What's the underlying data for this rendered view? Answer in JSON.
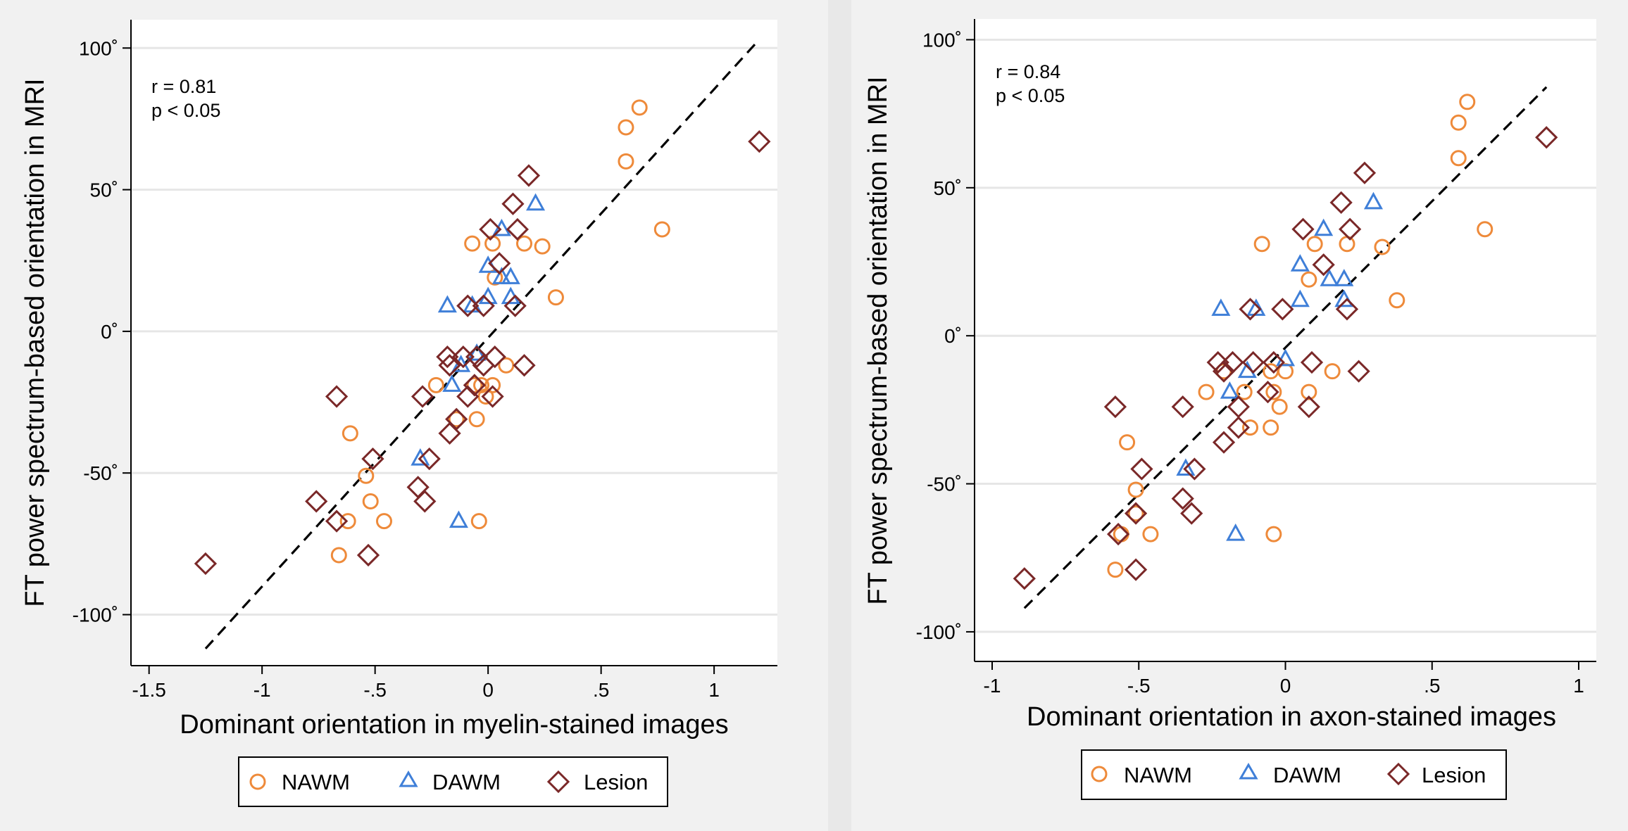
{
  "chart_data": [
    {
      "type": "scatter",
      "xlabel": "Dominant orientation in myelin-stained images",
      "ylabel": "FT power spectrum-based orientation in MRI",
      "annotation": [
        "r = 0.81",
        "p < 0.05"
      ],
      "xlim": [
        -1.58,
        1.28
      ],
      "ylim": [
        -118,
        110
      ],
      "xticks": [
        -1.5,
        -1,
        -0.5,
        0,
        0.5,
        1
      ],
      "xtick_labels": [
        "-1.5",
        "-1",
        "-.5",
        "0",
        ".5",
        "1"
      ],
      "yticks": [
        100,
        50,
        0,
        -50,
        -100
      ],
      "ytick_labels": [
        "100˚",
        "50˚",
        "0˚",
        "-50˚",
        "-100˚"
      ],
      "fit_line": {
        "x": [
          -1.25,
          1.2
        ],
        "y": [
          -112,
          103
        ]
      },
      "legend": [
        "NAWM",
        "DAWM",
        "Lesion"
      ],
      "series": [
        {
          "name": "NAWM",
          "color": "#ee8a3a",
          "marker": "circle",
          "points": [
            [
              0.67,
              79
            ],
            [
              0.61,
              72
            ],
            [
              0.61,
              60
            ],
            [
              0.77,
              36
            ],
            [
              0.24,
              30
            ],
            [
              0.16,
              31
            ],
            [
              0.02,
              31
            ],
            [
              -0.07,
              31
            ],
            [
              0.03,
              19
            ],
            [
              0.3,
              12
            ],
            [
              0.08,
              -12
            ],
            [
              -0.03,
              -19
            ],
            [
              -0.06,
              -19
            ],
            [
              0.02,
              -19
            ],
            [
              -0.23,
              -19
            ],
            [
              -0.01,
              -23
            ],
            [
              -0.14,
              -31
            ],
            [
              -0.05,
              -31
            ],
            [
              -0.61,
              -36
            ],
            [
              -0.54,
              -51
            ],
            [
              -0.52,
              -60
            ],
            [
              -0.62,
              -67
            ],
            [
              -0.46,
              -67
            ],
            [
              -0.04,
              -67
            ],
            [
              -0.66,
              -79
            ]
          ]
        },
        {
          "name": "DAWM",
          "color": "#3f7fd8",
          "marker": "triangle",
          "points": [
            [
              0.21,
              45
            ],
            [
              0.06,
              36
            ],
            [
              0.0,
              23
            ],
            [
              0.06,
              19
            ],
            [
              0.1,
              19
            ],
            [
              0.1,
              12
            ],
            [
              -0.18,
              9
            ],
            [
              -0.07,
              9
            ],
            [
              0.0,
              12
            ],
            [
              -0.12,
              -12
            ],
            [
              -0.05,
              -8
            ],
            [
              -0.16,
              -19
            ],
            [
              -0.3,
              -45
            ],
            [
              -0.13,
              -67
            ]
          ]
        },
        {
          "name": "Lesion",
          "color": "#7a2828",
          "marker": "diamond",
          "points": [
            [
              1.2,
              67
            ],
            [
              0.18,
              55
            ],
            [
              0.11,
              45
            ],
            [
              0.01,
              36
            ],
            [
              0.13,
              36
            ],
            [
              0.05,
              24
            ],
            [
              -0.09,
              9
            ],
            [
              -0.02,
              9
            ],
            [
              0.12,
              9
            ],
            [
              -0.18,
              -9
            ],
            [
              -0.11,
              -9
            ],
            [
              -0.05,
              -9
            ],
            [
              0.03,
              -9
            ],
            [
              -0.17,
              -12
            ],
            [
              -0.02,
              -12
            ],
            [
              0.16,
              -12
            ],
            [
              -0.06,
              -19
            ],
            [
              -0.09,
              -23
            ],
            [
              -0.29,
              -23
            ],
            [
              0.02,
              -23
            ],
            [
              -0.67,
              -23
            ],
            [
              -0.14,
              -31
            ],
            [
              -0.17,
              -36
            ],
            [
              -0.26,
              -45
            ],
            [
              -0.51,
              -45
            ],
            [
              -0.31,
              -55
            ],
            [
              -0.76,
              -60
            ],
            [
              -0.28,
              -60
            ],
            [
              -0.67,
              -67
            ],
            [
              -0.53,
              -79
            ],
            [
              -1.25,
              -82
            ]
          ]
        }
      ]
    },
    {
      "type": "scatter",
      "xlabel": "Dominant orientation in axon-stained images",
      "ylabel": "FT power spectrum-based orientation in MRI",
      "annotation": [
        "r = 0.84",
        "p < 0.05"
      ],
      "xlim": [
        -1.06,
        1.06
      ],
      "ylim": [
        -110,
        107
      ],
      "xticks": [
        -1,
        -0.5,
        0,
        0.5,
        1
      ],
      "xtick_labels": [
        "-1",
        "-.5",
        "0",
        ".5",
        "1"
      ],
      "yticks": [
        100,
        50,
        0,
        -50,
        -100
      ],
      "ytick_labels": [
        "100˚",
        "50˚",
        "0˚",
        "-50˚",
        "-100˚"
      ],
      "fit_line": {
        "x": [
          -0.89,
          0.89
        ],
        "y": [
          -92,
          84
        ]
      },
      "legend": [
        "NAWM",
        "DAWM",
        "Lesion"
      ],
      "series": [
        {
          "name": "NAWM",
          "color": "#ee8a3a",
          "marker": "circle",
          "points": [
            [
              0.62,
              79
            ],
            [
              0.59,
              72
            ],
            [
              0.59,
              60
            ],
            [
              0.68,
              36
            ],
            [
              0.33,
              30
            ],
            [
              0.21,
              31
            ],
            [
              0.1,
              31
            ],
            [
              -0.08,
              31
            ],
            [
              0.08,
              19
            ],
            [
              0.38,
              12
            ],
            [
              0.16,
              -12
            ],
            [
              -0.05,
              -12
            ],
            [
              0.0,
              -12
            ],
            [
              -0.21,
              -12
            ],
            [
              -0.14,
              -19
            ],
            [
              0.08,
              -19
            ],
            [
              -0.04,
              -19
            ],
            [
              -0.27,
              -19
            ],
            [
              -0.02,
              -24
            ],
            [
              -0.12,
              -31
            ],
            [
              -0.05,
              -31
            ],
            [
              -0.54,
              -36
            ],
            [
              -0.51,
              -52
            ],
            [
              -0.51,
              -60
            ],
            [
              -0.56,
              -67
            ],
            [
              -0.46,
              -67
            ],
            [
              -0.04,
              -67
            ],
            [
              -0.58,
              -79
            ]
          ]
        },
        {
          "name": "DAWM",
          "color": "#3f7fd8",
          "marker": "triangle",
          "points": [
            [
              0.3,
              45
            ],
            [
              0.13,
              36
            ],
            [
              0.05,
              24
            ],
            [
              0.15,
              19
            ],
            [
              0.2,
              19
            ],
            [
              0.2,
              12
            ],
            [
              -0.22,
              9
            ],
            [
              -0.1,
              9
            ],
            [
              0.05,
              12
            ],
            [
              -0.13,
              -12
            ],
            [
              0.0,
              -8
            ],
            [
              -0.19,
              -19
            ],
            [
              -0.34,
              -45
            ],
            [
              -0.17,
              -67
            ]
          ]
        },
        {
          "name": "Lesion",
          "color": "#7a2828",
          "marker": "diamond",
          "points": [
            [
              0.89,
              67
            ],
            [
              0.27,
              55
            ],
            [
              0.19,
              45
            ],
            [
              0.06,
              36
            ],
            [
              0.22,
              36
            ],
            [
              0.13,
              24
            ],
            [
              -0.12,
              9
            ],
            [
              -0.01,
              9
            ],
            [
              0.21,
              9
            ],
            [
              -0.23,
              -9
            ],
            [
              -0.18,
              -9
            ],
            [
              -0.11,
              -9
            ],
            [
              -0.04,
              -9
            ],
            [
              0.09,
              -9
            ],
            [
              -0.21,
              -12
            ],
            [
              0.25,
              -12
            ],
            [
              -0.06,
              -19
            ],
            [
              -0.16,
              -24
            ],
            [
              0.08,
              -24
            ],
            [
              -0.35,
              -24
            ],
            [
              -0.58,
              -24
            ],
            [
              -0.16,
              -31
            ],
            [
              -0.21,
              -36
            ],
            [
              -0.31,
              -45
            ],
            [
              -0.49,
              -45
            ],
            [
              -0.35,
              -55
            ],
            [
              -0.51,
              -60
            ],
            [
              -0.32,
              -60
            ],
            [
              -0.57,
              -67
            ],
            [
              -0.51,
              -79
            ],
            [
              -0.89,
              -82
            ]
          ]
        }
      ]
    }
  ]
}
